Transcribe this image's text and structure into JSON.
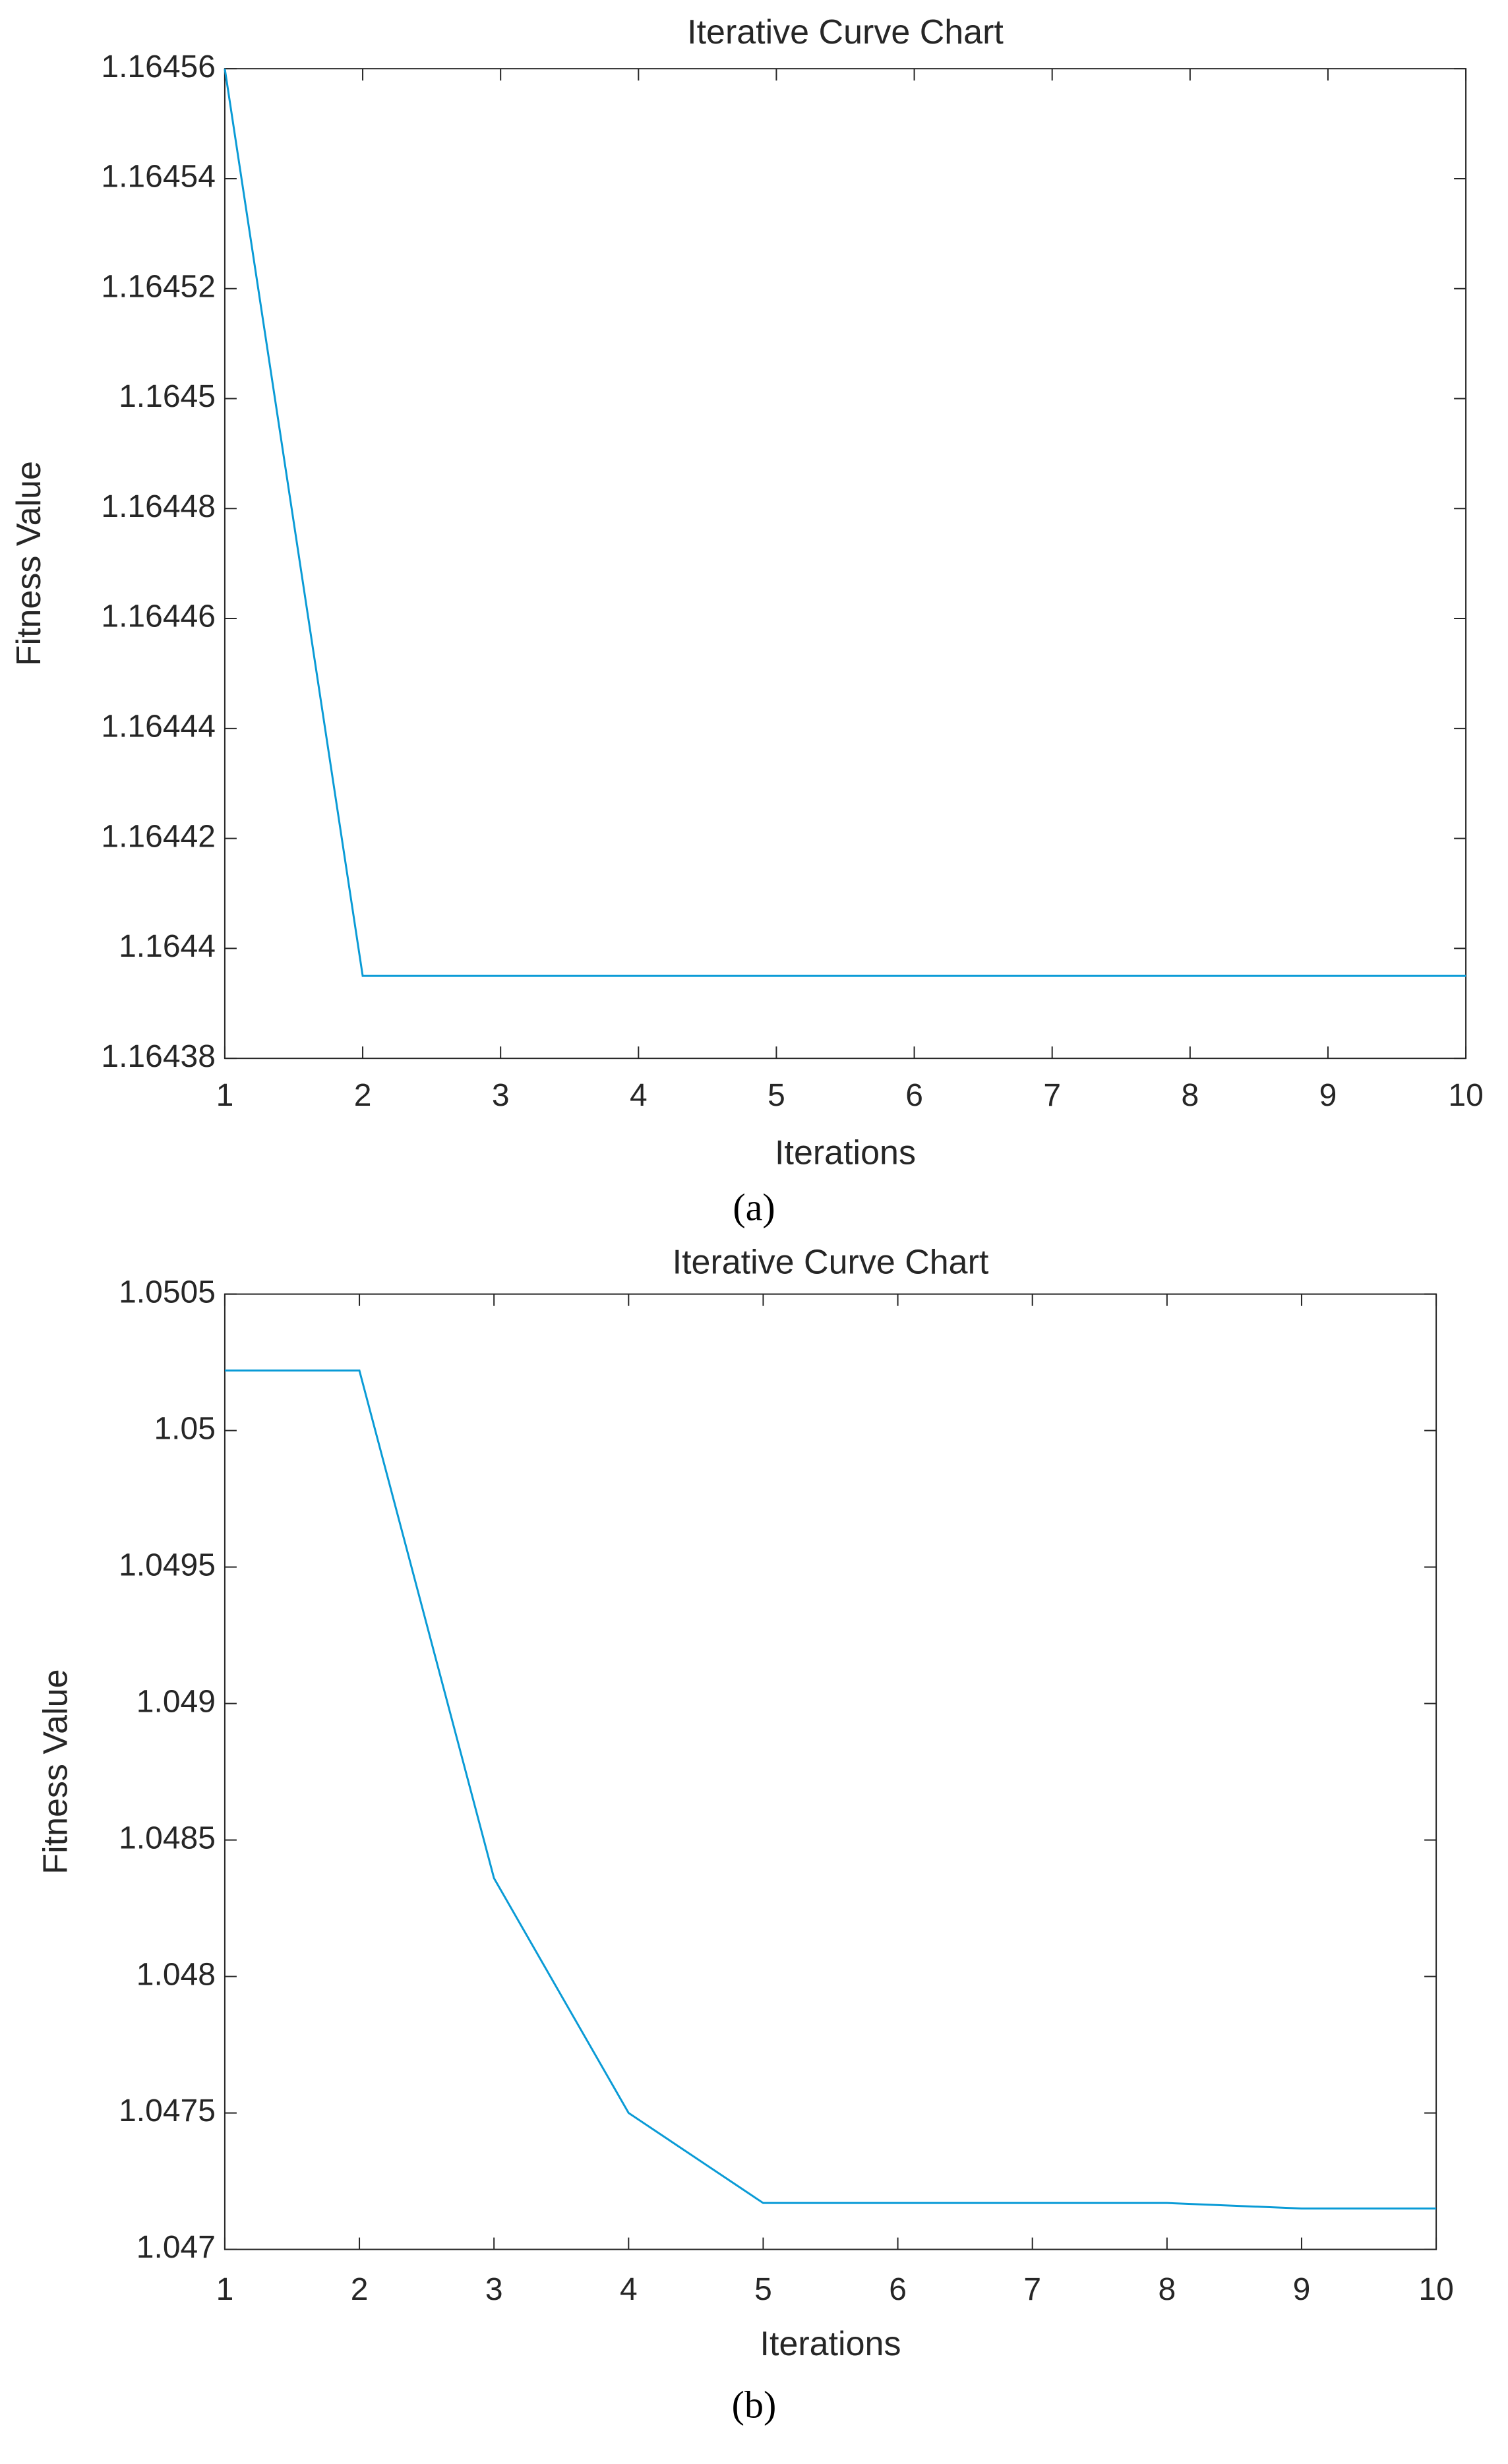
{
  "chart_data": [
    {
      "type": "line",
      "title": "Iterative Curve Chart",
      "x_label": "Iterations",
      "y_label": "Fitness Value",
      "caption": "(a)",
      "x": [
        1,
        2,
        3,
        4,
        5,
        6,
        7,
        8,
        9,
        10
      ],
      "values": [
        1.16456,
        1.164395,
        1.164395,
        1.164395,
        1.164395,
        1.164395,
        1.164395,
        1.164395,
        1.164395,
        1.164395
      ],
      "color": "#0a9bd6",
      "xlim": [
        1,
        10
      ],
      "xticks": [
        1,
        2,
        3,
        4,
        5,
        6,
        7,
        8,
        9,
        10
      ],
      "ylim": [
        1.16438,
        1.16456
      ],
      "yticks": [
        1.16438,
        1.1644,
        1.16442,
        1.16444,
        1.16446,
        1.16448,
        1.1645,
        1.16452,
        1.16454,
        1.16456
      ]
    },
    {
      "type": "line",
      "title": "Iterative Curve Chart",
      "x_label": "Iterations",
      "y_label": "Fitness Value",
      "caption": "(b)",
      "x": [
        1,
        2,
        3,
        4,
        5,
        6,
        7,
        8,
        9,
        10
      ],
      "values": [
        1.05022,
        1.05022,
        1.04836,
        1.0475,
        1.04717,
        1.04717,
        1.04717,
        1.04717,
        1.04715,
        1.04715
      ],
      "color": "#0a9bd6",
      "xlim": [
        1,
        10
      ],
      "xticks": [
        1,
        2,
        3,
        4,
        5,
        6,
        7,
        8,
        9,
        10
      ],
      "ylim": [
        1.047,
        1.0505
      ],
      "yticks": [
        1.047,
        1.0475,
        1.048,
        1.0485,
        1.049,
        1.0495,
        1.05,
        1.0505
      ]
    }
  ]
}
